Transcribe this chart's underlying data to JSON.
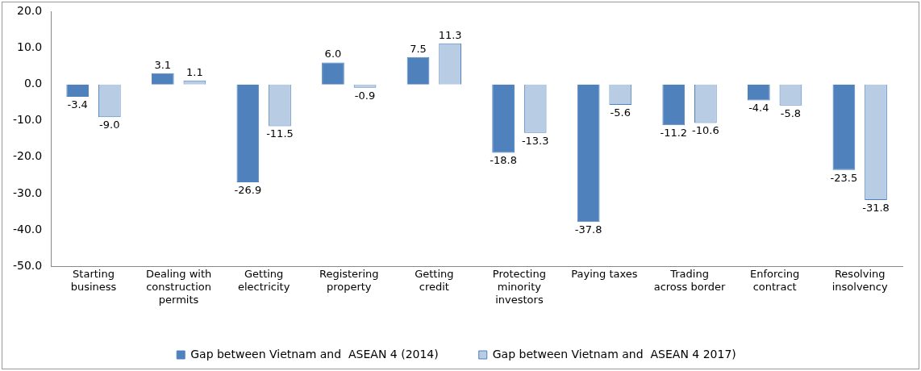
{
  "chart_data": {
    "type": "bar",
    "categories": [
      "Starting business",
      "Dealing with construction permits",
      "Getting electricity",
      "Registering property",
      "Getting credit",
      "Protecting minority investors",
      "Paying taxes",
      "Trading across border",
      "Enforcing contract",
      "Resolving insolvency"
    ],
    "series": [
      {
        "name": "Gap between Vietnam and  ASEAN 4 (2014)",
        "color": "#4f81bd",
        "values": [
          -3.4,
          3.1,
          -26.9,
          6.0,
          7.5,
          -18.8,
          -37.8,
          -11.2,
          -4.4,
          -23.5
        ],
        "value_labels": [
          "-3.4",
          "3.1",
          "-26.9",
          "6.0",
          "7.5",
          "-18.8",
          "-37.8",
          "-11.2",
          "-4.4",
          "-23.5"
        ]
      },
      {
        "name": "Gap between Vietnam and  ASEAN 4 2017)",
        "color": "#b8cce4",
        "values": [
          -9.0,
          1.1,
          -11.5,
          -0.9,
          11.3,
          -13.3,
          -5.6,
          -10.6,
          -5.8,
          -31.8
        ],
        "value_labels": [
          "-9.0",
          "1.1",
          "-11.5",
          "-0.9",
          "11.3",
          "-13.3",
          "-5.6",
          "-10.6",
          "-5.8",
          "-31.8"
        ]
      }
    ],
    "ylim": [
      -50,
      20
    ],
    "yticks": [
      {
        "value": -50,
        "label": "-50.0"
      },
      {
        "value": -40,
        "label": "-40.0"
      },
      {
        "value": -30,
        "label": "-30.0"
      },
      {
        "value": -20,
        "label": "-20.0"
      },
      {
        "value": -10,
        "label": "-10.0"
      },
      {
        "value": 0,
        "label": "0.0"
      },
      {
        "value": 10,
        "label": "10.0"
      },
      {
        "value": 20,
        "label": "20.0"
      }
    ],
    "grid": false,
    "legend": "bottom"
  }
}
